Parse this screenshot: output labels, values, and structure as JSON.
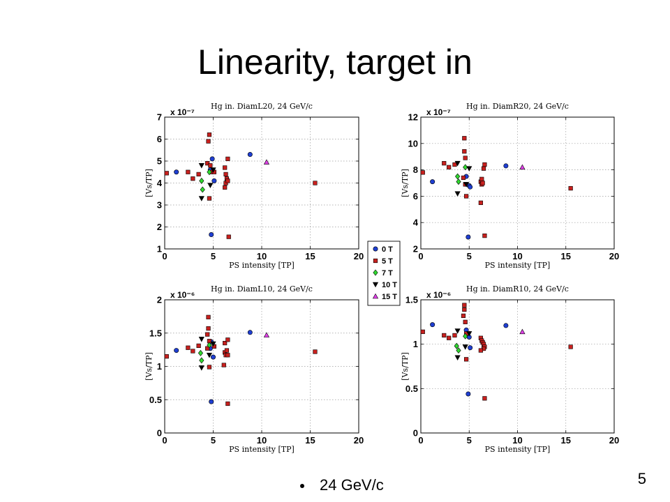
{
  "slide": {
    "title": "Linearity, target in",
    "bullet": "24 GeV/c",
    "page_number": "5"
  },
  "colors": {
    "0 T": "#1f3fd2",
    "5 T": "#c8201e",
    "7 T": "#2fd82f",
    "10 T": "#000000",
    "15 T": "#e040e8",
    "grid": "#9a9a9a"
  },
  "legend": {
    "items": [
      {
        "label": "0 T",
        "marker": "circle"
      },
      {
        "label": "5 T",
        "marker": "square"
      },
      {
        "label": "7 T",
        "marker": "diamond"
      },
      {
        "label": "10 T",
        "marker": "triangle-down"
      },
      {
        "label": "15 T",
        "marker": "triangle-up"
      }
    ]
  },
  "chart_data": [
    {
      "type": "scatter",
      "title": "Hg in. DiamL20, 24 GeV/c",
      "xlabel": "PS intensity [TP]",
      "ylabel": "[Vs/TP]",
      "exponent": "x 10⁻⁷",
      "xlim": [
        0,
        20
      ],
      "ylim": [
        1,
        7
      ],
      "xticks": [
        0,
        5,
        10,
        15,
        20
      ],
      "yticks": [
        1,
        2,
        3,
        4,
        5,
        6,
        7
      ],
      "grid": true,
      "series": [
        {
          "name": "0 T",
          "points": [
            [
              1.2,
              4.5
            ],
            [
              4.7,
              4.6
            ],
            [
              4.9,
              5.1
            ],
            [
              5.1,
              4.1
            ],
            [
              8.8,
              5.3
            ],
            [
              4.8,
              1.65
            ]
          ]
        },
        {
          "name": "5 T",
          "points": [
            [
              0.2,
              4.45
            ],
            [
              2.4,
              4.5
            ],
            [
              2.9,
              4.2
            ],
            [
              3.5,
              4.4
            ],
            [
              4.4,
              4.9
            ],
            [
              4.5,
              5.9
            ],
            [
              4.6,
              6.2
            ],
            [
              4.7,
              4.8
            ],
            [
              4.8,
              4.5
            ],
            [
              4.6,
              3.3
            ],
            [
              5.1,
              4.5
            ],
            [
              6.2,
              4.7
            ],
            [
              6.3,
              4.4
            ],
            [
              6.3,
              4.0
            ],
            [
              6.4,
              4.2
            ],
            [
              6.5,
              4.1
            ],
            [
              6.2,
              3.8
            ],
            [
              6.5,
              5.1
            ],
            [
              6.6,
              1.55
            ],
            [
              15.5,
              4.0
            ]
          ]
        },
        {
          "name": "7 T",
          "points": [
            [
              3.8,
              4.1
            ],
            [
              3.9,
              3.7
            ],
            [
              4.6,
              4.5
            ]
          ]
        },
        {
          "name": "10 T",
          "points": [
            [
              3.8,
              4.8
            ],
            [
              3.8,
              3.3
            ],
            [
              4.7,
              3.9
            ],
            [
              5.0,
              4.6
            ]
          ]
        },
        {
          "name": "15 T",
          "points": [
            [
              10.5,
              4.95
            ]
          ]
        }
      ]
    },
    {
      "type": "scatter",
      "title": "Hg in. DiamR20, 24 GeV/c",
      "xlabel": "PS intensity [TP]",
      "ylabel": "[Vs/TP]",
      "exponent": "x 10⁻⁷",
      "xlim": [
        0,
        20
      ],
      "ylim": [
        2,
        12
      ],
      "xticks": [
        0,
        5,
        10,
        15,
        20
      ],
      "yticks": [
        2,
        4,
        6,
        8,
        10,
        12
      ],
      "grid": true,
      "series": [
        {
          "name": "0 T",
          "points": [
            [
              1.2,
              7.1
            ],
            [
              4.7,
              7.5
            ],
            [
              5.0,
              6.8
            ],
            [
              5.1,
              6.7
            ],
            [
              8.8,
              8.3
            ],
            [
              4.9,
              2.9
            ]
          ]
        },
        {
          "name": "5 T",
          "points": [
            [
              0.2,
              7.8
            ],
            [
              2.4,
              8.5
            ],
            [
              2.9,
              8.2
            ],
            [
              3.5,
              8.4
            ],
            [
              4.5,
              10.4
            ],
            [
              4.5,
              9.4
            ],
            [
              4.6,
              8.9
            ],
            [
              4.4,
              7.4
            ],
            [
              4.6,
              6.9
            ],
            [
              4.7,
              6.0
            ],
            [
              6.2,
              7.1
            ],
            [
              6.3,
              7.3
            ],
            [
              6.3,
              6.9
            ],
            [
              6.4,
              7.0
            ],
            [
              6.5,
              8.1
            ],
            [
              6.6,
              8.4
            ],
            [
              6.2,
              5.5
            ],
            [
              6.6,
              3.0
            ],
            [
              15.5,
              6.6
            ]
          ]
        },
        {
          "name": "7 T",
          "points": [
            [
              3.8,
              7.5
            ],
            [
              3.9,
              7.1
            ],
            [
              4.6,
              8.2
            ]
          ]
        },
        {
          "name": "10 T",
          "points": [
            [
              3.8,
              8.5
            ],
            [
              3.8,
              6.2
            ],
            [
              4.7,
              6.9
            ],
            [
              5.0,
              8.1
            ]
          ]
        },
        {
          "name": "15 T",
          "points": [
            [
              10.5,
              8.2
            ]
          ]
        }
      ]
    },
    {
      "type": "scatter",
      "title": "Hg in. DiamL10, 24 GeV/c",
      "xlabel": "PS intensity [TP]",
      "ylabel": "[Vs/TP]",
      "exponent": "x 10⁻⁶",
      "xlim": [
        0,
        20
      ],
      "ylim": [
        0,
        2
      ],
      "xticks": [
        0,
        5,
        10,
        15,
        20
      ],
      "yticks": [
        0,
        0.5,
        1,
        1.5,
        2
      ],
      "grid": true,
      "series": [
        {
          "name": "0 T",
          "points": [
            [
              1.2,
              1.24
            ],
            [
              4.7,
              1.27
            ],
            [
              4.8,
              1.37
            ],
            [
              5.0,
              1.14
            ],
            [
              8.8,
              1.51
            ],
            [
              4.8,
              0.47
            ]
          ]
        },
        {
          "name": "5 T",
          "points": [
            [
              0.2,
              1.15
            ],
            [
              2.4,
              1.28
            ],
            [
              2.9,
              1.23
            ],
            [
              3.5,
              1.31
            ],
            [
              4.5,
              1.74
            ],
            [
              4.5,
              1.57
            ],
            [
              4.4,
              1.48
            ],
            [
              4.6,
              1.38
            ],
            [
              4.4,
              1.27
            ],
            [
              4.6,
              0.99
            ],
            [
              5.1,
              1.3
            ],
            [
              6.2,
              1.35
            ],
            [
              6.2,
              1.21
            ],
            [
              6.3,
              1.17
            ],
            [
              6.5,
              1.17
            ],
            [
              6.4,
              1.24
            ],
            [
              6.5,
              1.4
            ],
            [
              6.1,
              1.02
            ],
            [
              6.5,
              0.44
            ],
            [
              15.5,
              1.22
            ]
          ]
        },
        {
          "name": "7 T",
          "points": [
            [
              3.7,
              1.2
            ],
            [
              3.8,
              1.09
            ],
            [
              4.6,
              1.32
            ]
          ]
        },
        {
          "name": "10 T",
          "points": [
            [
              3.8,
              1.41
            ],
            [
              3.8,
              0.98
            ],
            [
              4.6,
              1.17
            ],
            [
              5.0,
              1.34
            ]
          ]
        },
        {
          "name": "15 T",
          "points": [
            [
              10.5,
              1.47
            ]
          ]
        }
      ]
    },
    {
      "type": "scatter",
      "title": "Hg in. DiamR10, 24 GeV/c",
      "xlabel": "PS intensity [TP]",
      "ylabel": "[Vs/TP]",
      "exponent": "x 10⁻⁶",
      "xlim": [
        0,
        20
      ],
      "ylim": [
        0,
        1.5
      ],
      "xticks": [
        0,
        5,
        10,
        15,
        20
      ],
      "yticks": [
        0,
        0.5,
        1,
        1.5
      ],
      "grid": true,
      "series": [
        {
          "name": "0 T",
          "points": [
            [
              1.2,
              1.22
            ],
            [
              4.7,
              1.16
            ],
            [
              5.0,
              1.08
            ],
            [
              5.1,
              0.96
            ],
            [
              8.8,
              1.21
            ],
            [
              4.9,
              0.44
            ]
          ]
        },
        {
          "name": "5 T",
          "points": [
            [
              0.2,
              1.14
            ],
            [
              2.4,
              1.1
            ],
            [
              2.9,
              1.07
            ],
            [
              3.5,
              1.1
            ],
            [
              4.5,
              1.44
            ],
            [
              4.5,
              1.39
            ],
            [
              4.4,
              1.32
            ],
            [
              4.6,
              1.25
            ],
            [
              4.7,
              1.12
            ],
            [
              4.7,
              0.83
            ],
            [
              6.2,
              1.07
            ],
            [
              6.3,
              1.04
            ],
            [
              6.4,
              1.02
            ],
            [
              6.5,
              1.0
            ],
            [
              6.6,
              0.97
            ],
            [
              6.5,
              0.95
            ],
            [
              6.2,
              0.93
            ],
            [
              6.6,
              0.39
            ],
            [
              15.5,
              0.97
            ]
          ]
        },
        {
          "name": "7 T",
          "points": [
            [
              3.7,
              0.98
            ],
            [
              3.9,
              0.93
            ],
            [
              4.6,
              1.09
            ]
          ]
        },
        {
          "name": "10 T",
          "points": [
            [
              3.8,
              1.15
            ],
            [
              3.8,
              0.85
            ],
            [
              4.6,
              0.97
            ],
            [
              5.0,
              1.12
            ]
          ]
        },
        {
          "name": "15 T",
          "points": [
            [
              10.5,
              1.14
            ]
          ]
        }
      ]
    }
  ]
}
